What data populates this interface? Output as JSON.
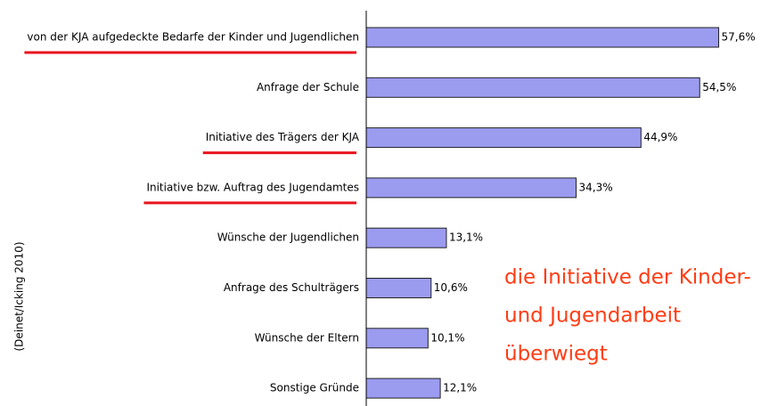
{
  "chart_data": {
    "type": "bar",
    "orientation": "horizontal",
    "categories": [
      "von der KJA aufgedeckte Bedarfe der Kinder und Jugendlichen",
      "Anfrage der Schule",
      "Initiative des Trägers der KJA",
      "Initiative bzw. Auftrag des Jugendamtes",
      "Wünsche der Jugendlichen",
      "Anfrage des Schulträgers",
      "Wünsche der Eltern",
      "Sonstige Gründe"
    ],
    "values": [
      57.6,
      54.5,
      44.9,
      34.3,
      13.1,
      10.6,
      10.1,
      12.1
    ],
    "value_labels": [
      "57,6%",
      "54,5%",
      "44,9%",
      "34,3%",
      "13,1%",
      "10,6%",
      "10,1%",
      "12,1%"
    ],
    "color": "#9b9bf0",
    "xlim": [
      0,
      60
    ],
    "highlighted_categories": [
      0,
      2,
      3
    ],
    "highlight_color": "#e8141e",
    "source": "(Deinet/Icking 2010)",
    "annotation": [
      "die Initiative der Kinder-",
      "und Jugendarbeit",
      "überwiegt"
    ],
    "annotation_color": "#ff3c14"
  }
}
